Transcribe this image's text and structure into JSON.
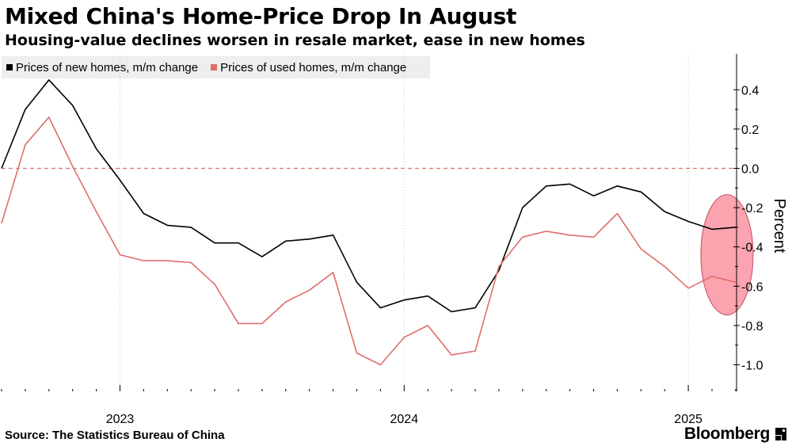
{
  "header": {
    "title": "Mixed China's Home-Price Drop In August",
    "subtitle": "Housing-value declines worsen in resale market, ease in new homes"
  },
  "footer": {
    "source": "Source: The Statistics Bureau of China",
    "brand": "Bloomberg"
  },
  "colors": {
    "new_homes": "#000000",
    "used_homes": "#e06d6d",
    "zero_line": "#e06d6d",
    "highlight_fill": "#fba3ae",
    "highlight_stroke": "#c45064"
  },
  "chart_data": {
    "type": "line",
    "title": "Mixed China's Home-Price Drop In August",
    "ylabel": "Percent",
    "xlabel": "",
    "ylim": [
      -1.13,
      0.57
    ],
    "yticks": [
      0.4,
      0.2,
      0.0,
      -0.2,
      -0.4,
      -0.6,
      -0.8,
      -1.0
    ],
    "ytick_labels": [
      "0.4",
      "0.2",
      "0.0",
      "-0.2",
      "-0.4",
      "-0.6",
      "-0.8",
      "-1.0"
    ],
    "x_tick_labels": [
      "2023",
      "2024",
      "2025"
    ],
    "x_start": "2022-08",
    "x_end": "2025-08",
    "year_tick_indices": [
      5,
      17,
      29
    ],
    "year_label_indices": [
      5,
      17,
      29
    ],
    "legend_position": "top-left",
    "zero_line": true,
    "series": [
      {
        "name": "Prices of new homes, m/m change",
        "values": [
          0.0,
          0.3,
          0.45,
          0.32,
          0.1,
          -0.06,
          -0.23,
          -0.29,
          -0.3,
          -0.38,
          -0.38,
          -0.45,
          -0.37,
          -0.36,
          -0.34,
          -0.58,
          -0.71,
          -0.67,
          -0.65,
          -0.73,
          -0.71,
          -0.52,
          -0.2,
          -0.09,
          -0.08,
          -0.14,
          -0.09,
          -0.12,
          -0.22,
          -0.27,
          -0.31,
          -0.3
        ]
      },
      {
        "name": "Prices of used homes, m/m change",
        "values": [
          -0.28,
          0.12,
          0.26,
          0.01,
          -0.22,
          -0.44,
          -0.47,
          -0.47,
          -0.48,
          -0.59,
          -0.79,
          -0.79,
          -0.68,
          -0.62,
          -0.53,
          -0.94,
          -1.0,
          -0.86,
          -0.8,
          -0.95,
          -0.93,
          -0.5,
          -0.35,
          -0.32,
          -0.34,
          -0.35,
          -0.23,
          -0.41,
          -0.5,
          -0.61,
          -0.55,
          -0.58
        ]
      }
    ],
    "annotation": "highlight ellipse around latest (August 2025) values"
  }
}
